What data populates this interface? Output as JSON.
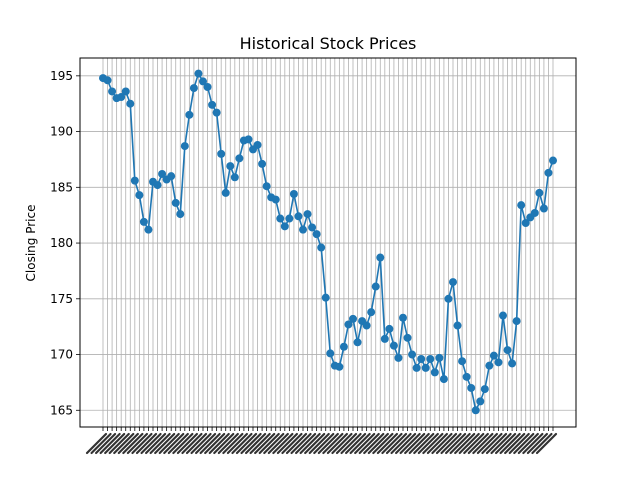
{
  "chart_data": {
    "type": "line",
    "title": "Historical Stock Prices",
    "xlabel": "",
    "ylabel": "Closing Price",
    "ylim": [
      163.5,
      196.6
    ],
    "yticks": [
      165,
      170,
      175,
      180,
      185,
      190,
      195
    ],
    "grid": true,
    "legend": "none",
    "series_color": "#1f77b4",
    "marker": "circle",
    "x_tick_labels_note": "dense rotated date labels, unreadable",
    "values": [
      194.8,
      194.6,
      193.6,
      193.0,
      193.1,
      193.6,
      192.5,
      185.6,
      184.3,
      181.9,
      181.2,
      185.5,
      185.2,
      186.2,
      185.7,
      186.0,
      183.6,
      182.6,
      188.7,
      191.5,
      193.9,
      195.2,
      194.5,
      194.0,
      192.4,
      191.7,
      188.0,
      184.5,
      186.9,
      185.9,
      187.6,
      189.2,
      189.3,
      188.4,
      188.8,
      187.1,
      185.1,
      184.1,
      183.9,
      182.2,
      181.5,
      182.2,
      184.4,
      182.4,
      181.2,
      182.6,
      181.4,
      180.8,
      179.6,
      175.1,
      170.1,
      169.0,
      168.9,
      170.7,
      172.7,
      173.2,
      171.1,
      173.0,
      172.6,
      173.8,
      176.1,
      178.7,
      171.4,
      172.3,
      170.8,
      169.7,
      173.3,
      171.5,
      170.0,
      168.8,
      169.6,
      168.8,
      169.6,
      168.4,
      169.7,
      167.8,
      175.0,
      176.5,
      172.6,
      169.4,
      168.0,
      167.0,
      165.0,
      165.8,
      166.9,
      169.0,
      169.9,
      169.3,
      173.5,
      170.4,
      169.2,
      173.0,
      183.4,
      181.8,
      182.3,
      182.7,
      184.5,
      183.1,
      186.3,
      187.4
    ]
  }
}
